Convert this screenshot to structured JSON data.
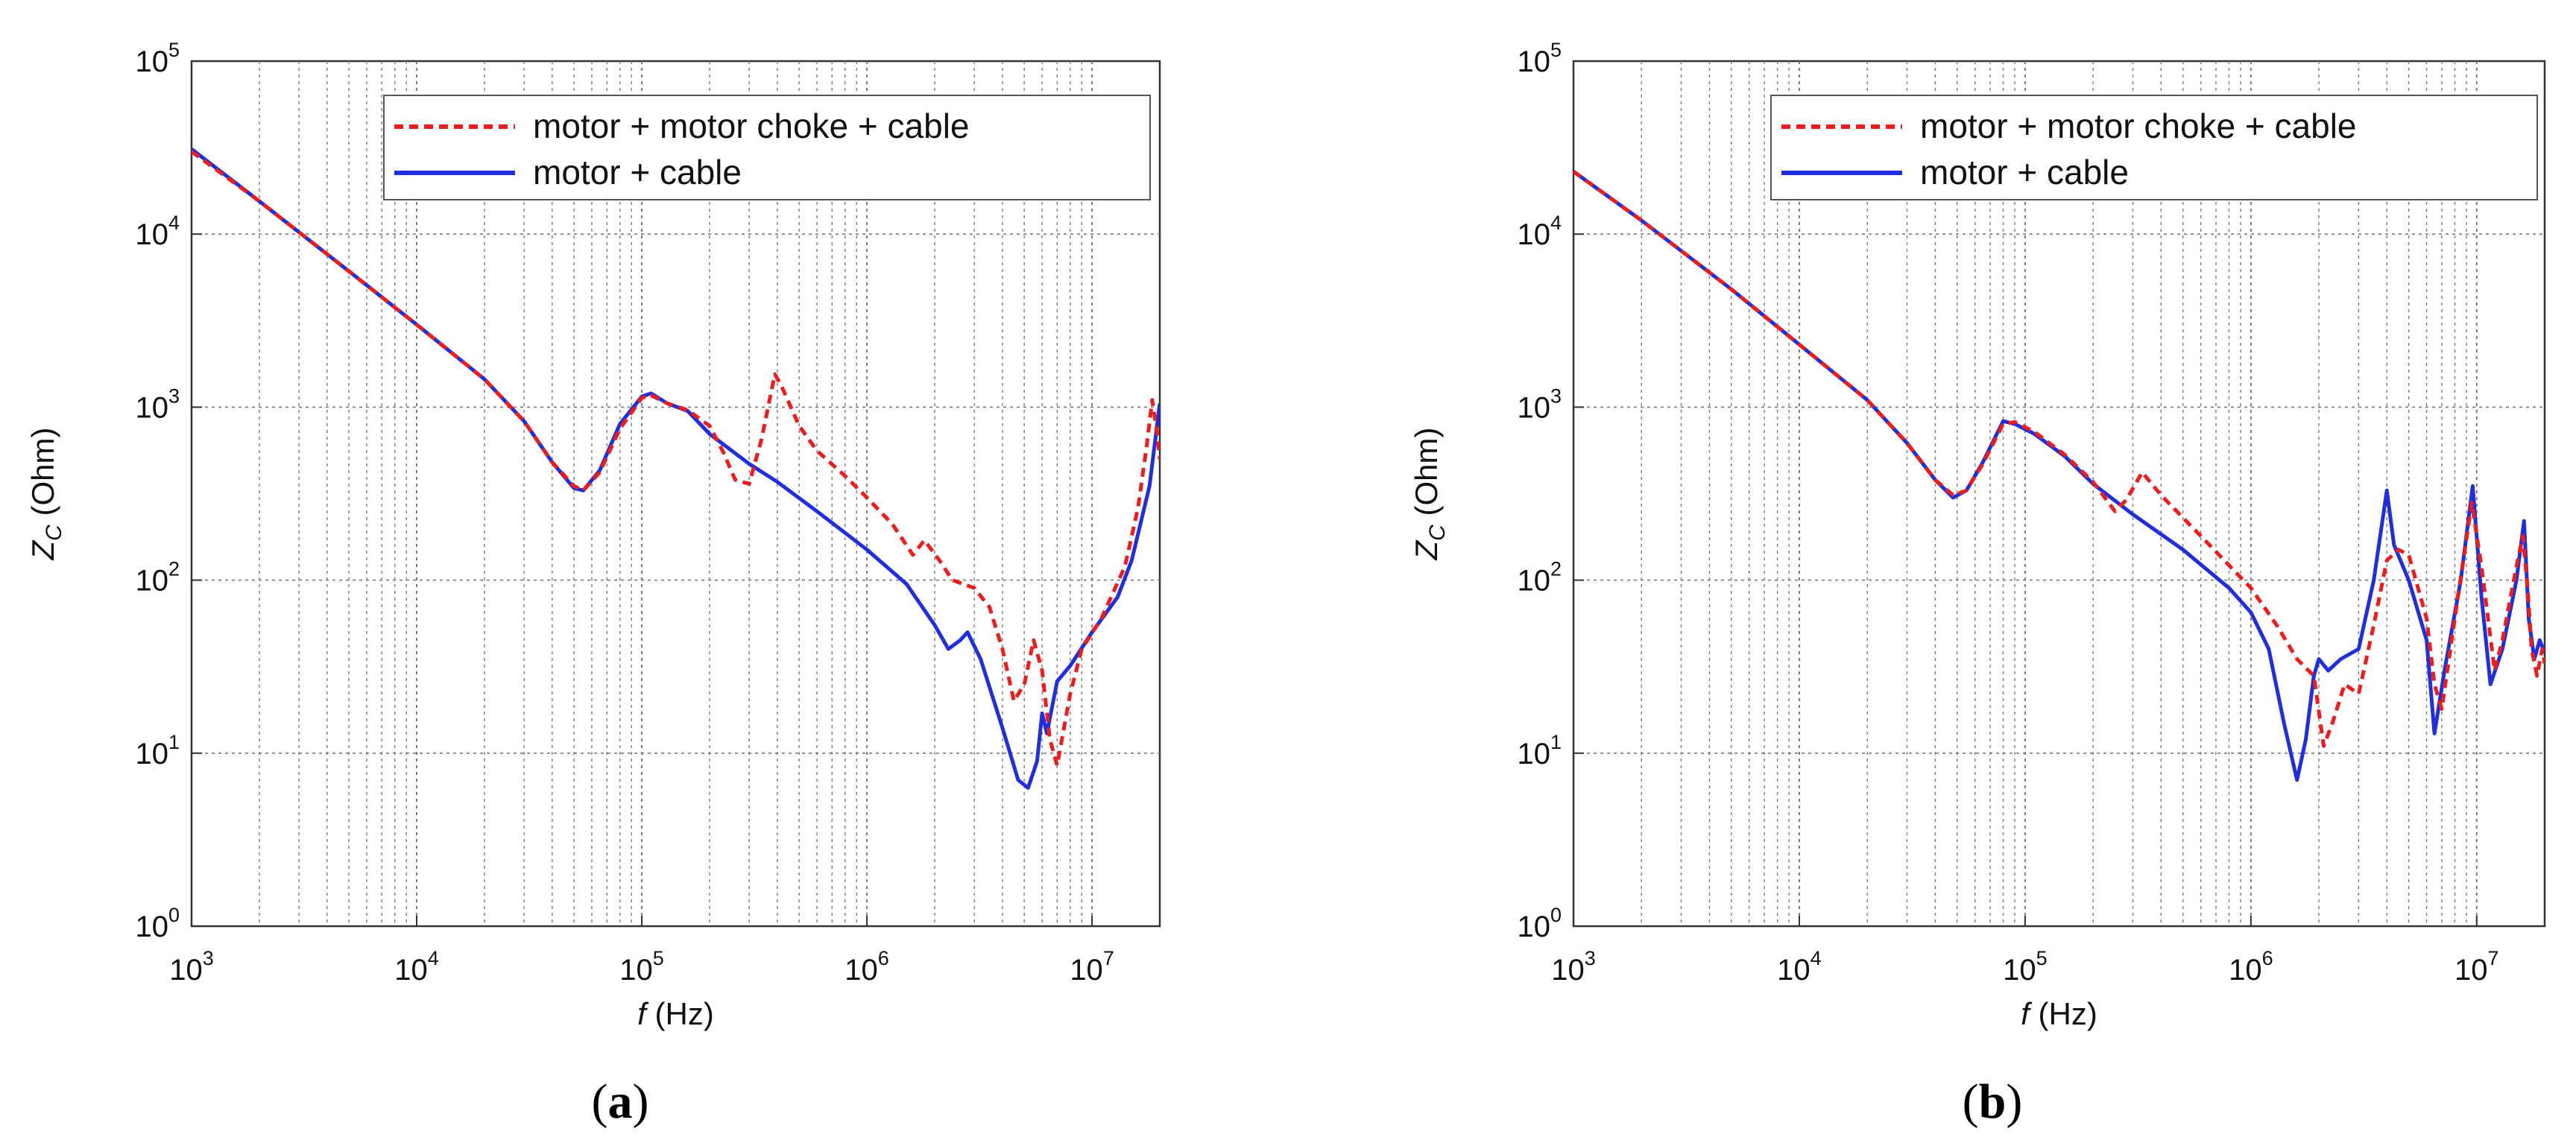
{
  "colors": {
    "dashed_series": "#ee1c1c",
    "solid_series": "#1f2fe0",
    "grid": "#7a7a7a",
    "axes": "#333333"
  },
  "chart_data": [
    {
      "type": "line",
      "panel_label": "a",
      "title": "",
      "xlabel": "f (Hz)",
      "ylabel": "Z_C (Ohm)",
      "x_scale": "log",
      "y_scale": "log",
      "xlim": [
        1000,
        20000000
      ],
      "ylim": [
        1,
        100000
      ],
      "x_ticks": [
        {
          "base": "10",
          "exp": "3"
        },
        {
          "base": "10",
          "exp": "4"
        },
        {
          "base": "10",
          "exp": "5"
        },
        {
          "base": "10",
          "exp": "6"
        },
        {
          "base": "10",
          "exp": "7"
        }
      ],
      "y_ticks": [
        {
          "base": "10",
          "exp": "0"
        },
        {
          "base": "10",
          "exp": "1"
        },
        {
          "base": "10",
          "exp": "2"
        },
        {
          "base": "10",
          "exp": "3"
        },
        {
          "base": "10",
          "exp": "4"
        },
        {
          "base": "10",
          "exp": "5"
        }
      ],
      "grid": true,
      "legend_position": "top-right",
      "series": [
        {
          "name": "motor + motor choke + cable",
          "style": "dashed",
          "color": "#ee1c1c",
          "points": [
            [
              1000,
              30000
            ],
            [
              2000,
              15500
            ],
            [
              5000,
              6100
            ],
            [
              10000,
              3000
            ],
            [
              20000,
              1450
            ],
            [
              30000,
              830
            ],
            [
              40000,
              480
            ],
            [
              50000,
              350
            ],
            [
              55000,
              330
            ],
            [
              65000,
              420
            ],
            [
              80000,
              750
            ],
            [
              100000,
              1130
            ],
            [
              110000,
              1170
            ],
            [
              130000,
              1050
            ],
            [
              160000,
              960
            ],
            [
              200000,
              780
            ],
            [
              230000,
              550
            ],
            [
              260000,
              380
            ],
            [
              300000,
              360
            ],
            [
              340000,
              650
            ],
            [
              390000,
              1550
            ],
            [
              420000,
              1300
            ],
            [
              500000,
              780
            ],
            [
              600000,
              560
            ],
            [
              800000,
              400
            ],
            [
              1000000,
              300
            ],
            [
              1300000,
              210
            ],
            [
              1600000,
              140
            ],
            [
              1800000,
              170
            ],
            [
              2100000,
              130
            ],
            [
              2400000,
              100
            ],
            [
              3000000,
              90
            ],
            [
              3500000,
              70
            ],
            [
              4000000,
              40
            ],
            [
              4500000,
              20
            ],
            [
              5000000,
              25
            ],
            [
              5500000,
              45
            ],
            [
              6000000,
              30
            ],
            [
              6500000,
              12
            ],
            [
              7000000,
              8.5
            ],
            [
              8000000,
              22
            ],
            [
              9000000,
              40
            ],
            [
              11000000,
              60
            ],
            [
              14000000,
              120
            ],
            [
              16000000,
              260
            ],
            [
              17500000,
              600
            ],
            [
              18500000,
              1100
            ],
            [
              19500000,
              700
            ],
            [
              20000000,
              500
            ]
          ]
        },
        {
          "name": "motor + cable",
          "style": "solid",
          "color": "#1f2fe0",
          "points": [
            [
              1000,
              31000
            ],
            [
              2000,
              15500
            ],
            [
              5000,
              6100
            ],
            [
              10000,
              3000
            ],
            [
              20000,
              1450
            ],
            [
              30000,
              830
            ],
            [
              40000,
              480
            ],
            [
              50000,
              340
            ],
            [
              55000,
              330
            ],
            [
              65000,
              430
            ],
            [
              80000,
              800
            ],
            [
              100000,
              1150
            ],
            [
              110000,
              1200
            ],
            [
              130000,
              1050
            ],
            [
              160000,
              950
            ],
            [
              200000,
              700
            ],
            [
              300000,
              470
            ],
            [
              400000,
              370
            ],
            [
              600000,
              250
            ],
            [
              1000000,
              150
            ],
            [
              1500000,
              95
            ],
            [
              2000000,
              55
            ],
            [
              2300000,
              40
            ],
            [
              2600000,
              45
            ],
            [
              2800000,
              50
            ],
            [
              3200000,
              35
            ],
            [
              4000000,
              14
            ],
            [
              4700000,
              7
            ],
            [
              5200000,
              6.3
            ],
            [
              5700000,
              9
            ],
            [
              6000000,
              17
            ],
            [
              6300000,
              13
            ],
            [
              7000000,
              26
            ],
            [
              8000000,
              32
            ],
            [
              10000000,
              50
            ],
            [
              13000000,
              80
            ],
            [
              15000000,
              130
            ],
            [
              18000000,
              350
            ],
            [
              20000000,
              1050
            ]
          ]
        }
      ]
    },
    {
      "type": "line",
      "panel_label": "b",
      "title": "",
      "xlabel": "f (Hz)",
      "ylabel": "Z_C (Ohm)",
      "x_scale": "log",
      "y_scale": "log",
      "xlim": [
        1000,
        20000000
      ],
      "ylim": [
        1,
        100000
      ],
      "x_ticks": [
        {
          "base": "10",
          "exp": "3"
        },
        {
          "base": "10",
          "exp": "4"
        },
        {
          "base": "10",
          "exp": "5"
        },
        {
          "base": "10",
          "exp": "6"
        },
        {
          "base": "10",
          "exp": "7"
        }
      ],
      "y_ticks": [
        {
          "base": "10",
          "exp": "0"
        },
        {
          "base": "10",
          "exp": "1"
        },
        {
          "base": "10",
          "exp": "2"
        },
        {
          "base": "10",
          "exp": "3"
        },
        {
          "base": "10",
          "exp": "4"
        },
        {
          "base": "10",
          "exp": "5"
        }
      ],
      "grid": true,
      "legend_position": "top-right",
      "series": [
        {
          "name": "motor + motor choke + cable",
          "style": "dashed",
          "color": "#ee1c1c",
          "points": [
            [
              1000,
              23000
            ],
            [
              2000,
              12000
            ],
            [
              5000,
              4800
            ],
            [
              10000,
              2300
            ],
            [
              20000,
              1100
            ],
            [
              30000,
              620
            ],
            [
              40000,
              380
            ],
            [
              48000,
              310
            ],
            [
              55000,
              330
            ],
            [
              65000,
              470
            ],
            [
              80000,
              800
            ],
            [
              90000,
              820
            ],
            [
              110000,
              720
            ],
            [
              150000,
              530
            ],
            [
              200000,
              370
            ],
            [
              250000,
              250
            ],
            [
              280000,
              290
            ],
            [
              330000,
              420
            ],
            [
              400000,
              310
            ],
            [
              600000,
              180
            ],
            [
              1000000,
              90
            ],
            [
              1300000,
              55
            ],
            [
              1600000,
              35
            ],
            [
              1900000,
              28
            ],
            [
              2100000,
              11
            ],
            [
              2300000,
              15
            ],
            [
              2600000,
              25
            ],
            [
              3000000,
              22
            ],
            [
              3500000,
              55
            ],
            [
              4000000,
              130
            ],
            [
              4500000,
              150
            ],
            [
              5000000,
              140
            ],
            [
              5500000,
              90
            ],
            [
              6000000,
              60
            ],
            [
              6500000,
              25
            ],
            [
              7000000,
              18
            ],
            [
              8000000,
              60
            ],
            [
              9500000,
              280
            ],
            [
              10500000,
              120
            ],
            [
              12000000,
              30
            ],
            [
              13000000,
              45
            ],
            [
              15000000,
              120
            ],
            [
              16000000,
              180
            ],
            [
              16800000,
              90
            ],
            [
              17500000,
              40
            ],
            [
              18500000,
              28
            ],
            [
              19500000,
              40
            ],
            [
              20000000,
              33
            ]
          ]
        },
        {
          "name": "motor + cable",
          "style": "solid",
          "color": "#1f2fe0",
          "points": [
            [
              1000,
              23000
            ],
            [
              2000,
              12000
            ],
            [
              5000,
              4800
            ],
            [
              10000,
              2300
            ],
            [
              20000,
              1100
            ],
            [
              30000,
              620
            ],
            [
              40000,
              380
            ],
            [
              48000,
              300
            ],
            [
              55000,
              330
            ],
            [
              65000,
              480
            ],
            [
              80000,
              830
            ],
            [
              90000,
              800
            ],
            [
              110000,
              700
            ],
            [
              150000,
              520
            ],
            [
              200000,
              360
            ],
            [
              300000,
              240
            ],
            [
              500000,
              150
            ],
            [
              800000,
              90
            ],
            [
              1000000,
              65
            ],
            [
              1200000,
              40
            ],
            [
              1400000,
              15
            ],
            [
              1600000,
              7
            ],
            [
              1750000,
              12
            ],
            [
              1900000,
              28
            ],
            [
              2000000,
              35
            ],
            [
              2200000,
              30
            ],
            [
              2500000,
              35
            ],
            [
              3000000,
              40
            ],
            [
              3500000,
              100
            ],
            [
              4000000,
              330
            ],
            [
              4300000,
              160
            ],
            [
              5000000,
              100
            ],
            [
              6000000,
              45
            ],
            [
              6500000,
              13
            ],
            [
              7200000,
              30
            ],
            [
              8500000,
              100
            ],
            [
              9600000,
              350
            ],
            [
              10500000,
              80
            ],
            [
              11500000,
              25
            ],
            [
              13000000,
              40
            ],
            [
              15000000,
              100
            ],
            [
              16200000,
              220
            ],
            [
              17000000,
              60
            ],
            [
              18000000,
              35
            ],
            [
              19000000,
              45
            ],
            [
              20000000,
              38
            ]
          ]
        }
      ]
    }
  ],
  "captions": {
    "a": "a",
    "b": "b"
  }
}
